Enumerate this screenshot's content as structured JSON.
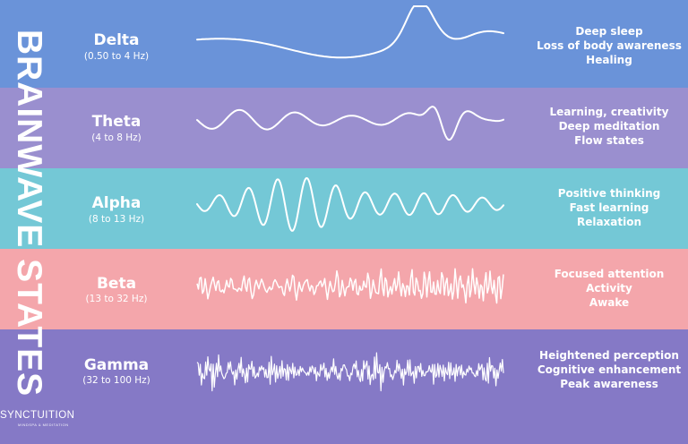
{
  "title": "BRAINWAVE STATES",
  "logo": {
    "name": "SYNCTUITION",
    "tagline": "MINDSPA & MEDITATION"
  },
  "colors": {
    "delta": "#6a93d9",
    "theta": "#9a8fcf",
    "alpha": "#74c8d6",
    "beta": "#f4a6ab",
    "gamma": "#8579c6",
    "wave": "#ffffff"
  },
  "bands": [
    {
      "name": "Delta",
      "range": "(0.50 to 4 Hz)",
      "traits": [
        "Deep sleep",
        "Loss of body awareness",
        "Healing"
      ]
    },
    {
      "name": "Theta",
      "range": "(4 to 8 Hz)",
      "traits": [
        "Learning, creativity",
        "Deep meditation",
        "Flow states"
      ]
    },
    {
      "name": "Alpha",
      "range": "(8 to 13 Hz)",
      "traits": [
        "Positive thinking",
        "Fast learning",
        "Relaxation"
      ]
    },
    {
      "name": "Beta",
      "range": "(13 to 32 Hz)",
      "traits": [
        "Focused attention",
        "Activity",
        "Awake"
      ]
    },
    {
      "name": "Gamma",
      "range": "(32 to 100 Hz)",
      "traits": [
        "Heightened perception",
        "Cognitive enhancement",
        "Peak awareness"
      ]
    }
  ]
}
